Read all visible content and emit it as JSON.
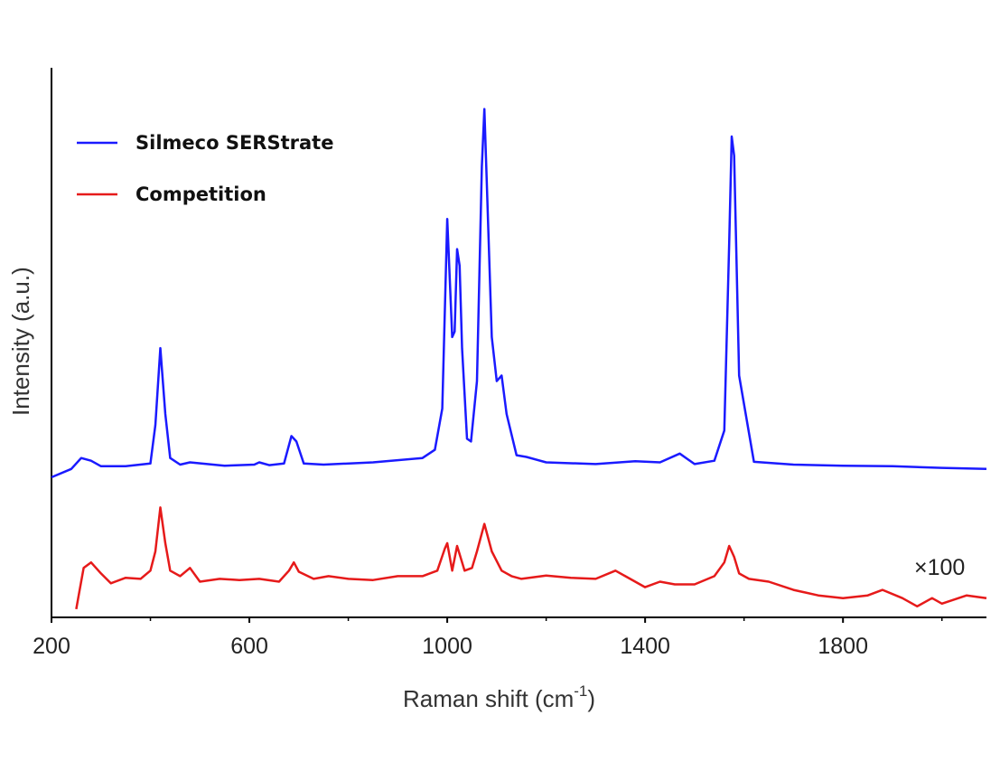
{
  "chart_data": {
    "type": "line",
    "xlabel": "Raman shift (cm",
    "xlabel_sup": "-1",
    "xlabel_end": ")",
    "ylabel": "Intensity (a.u.)",
    "xlim": [
      200,
      2090
    ],
    "ylim": [
      0,
      1
    ],
    "x_ticks": [
      200,
      600,
      1000,
      1400,
      1800
    ],
    "x_tick_labels": [
      "200",
      "600",
      "1000",
      "1400",
      "1800"
    ],
    "annotation": "×100",
    "legend_position": "top-left",
    "grid": false,
    "series": [
      {
        "name": "Silmeco SERStrate",
        "color": "#1a1aff",
        "x": [
          200,
          240,
          260,
          280,
          300,
          350,
          400,
          410,
          420,
          430,
          440,
          460,
          480,
          550,
          610,
          620,
          640,
          670,
          685,
          695,
          710,
          750,
          850,
          950,
          975,
          990,
          1000,
          1010,
          1015,
          1020,
          1025,
          1030,
          1040,
          1048,
          1060,
          1070,
          1075,
          1080,
          1090,
          1100,
          1110,
          1120,
          1140,
          1160,
          1200,
          1300,
          1380,
          1430,
          1470,
          1500,
          1540,
          1560,
          1570,
          1575,
          1580,
          1590,
          1620,
          1700,
          1800,
          1900,
          2000,
          2090
        ],
        "y": [
          0.255,
          0.27,
          0.29,
          0.285,
          0.275,
          0.275,
          0.28,
          0.35,
          0.49,
          0.37,
          0.29,
          0.278,
          0.282,
          0.276,
          0.278,
          0.282,
          0.277,
          0.28,
          0.33,
          0.32,
          0.28,
          0.278,
          0.282,
          0.29,
          0.305,
          0.38,
          0.725,
          0.51,
          0.52,
          0.67,
          0.64,
          0.49,
          0.325,
          0.32,
          0.43,
          0.82,
          0.925,
          0.79,
          0.51,
          0.43,
          0.44,
          0.37,
          0.295,
          0.292,
          0.282,
          0.279,
          0.284,
          0.282,
          0.298,
          0.279,
          0.285,
          0.34,
          0.68,
          0.875,
          0.84,
          0.44,
          0.283,
          0.278,
          0.276,
          0.275,
          0.272,
          0.27
        ]
      },
      {
        "name": "Competition",
        "color": "#e61a1a",
        "x": [
          250,
          255,
          265,
          280,
          300,
          320,
          350,
          380,
          400,
          410,
          420,
          430,
          440,
          460,
          480,
          500,
          540,
          580,
          620,
          660,
          680,
          690,
          700,
          730,
          760,
          800,
          850,
          900,
          950,
          980,
          995,
          1000,
          1010,
          1020,
          1025,
          1035,
          1050,
          1060,
          1075,
          1090,
          1110,
          1130,
          1150,
          1200,
          1250,
          1300,
          1340,
          1360,
          1400,
          1430,
          1460,
          1500,
          1540,
          1560,
          1570,
          1580,
          1590,
          1610,
          1650,
          1700,
          1750,
          1800,
          1850,
          1880,
          1920,
          1950,
          1980,
          2000,
          2050,
          2090
        ],
        "y": [
          0.015,
          0.04,
          0.09,
          0.1,
          0.08,
          0.062,
          0.072,
          0.07,
          0.085,
          0.12,
          0.2,
          0.135,
          0.085,
          0.075,
          0.09,
          0.065,
          0.07,
          0.068,
          0.07,
          0.065,
          0.085,
          0.1,
          0.083,
          0.07,
          0.075,
          0.07,
          0.068,
          0.075,
          0.075,
          0.085,
          0.125,
          0.135,
          0.085,
          0.13,
          0.115,
          0.085,
          0.09,
          0.12,
          0.17,
          0.12,
          0.085,
          0.075,
          0.07,
          0.076,
          0.072,
          0.07,
          0.085,
          0.075,
          0.055,
          0.065,
          0.06,
          0.06,
          0.075,
          0.1,
          0.13,
          0.11,
          0.08,
          0.07,
          0.065,
          0.05,
          0.04,
          0.035,
          0.04,
          0.05,
          0.035,
          0.02,
          0.035,
          0.025,
          0.04,
          0.035
        ]
      }
    ]
  }
}
